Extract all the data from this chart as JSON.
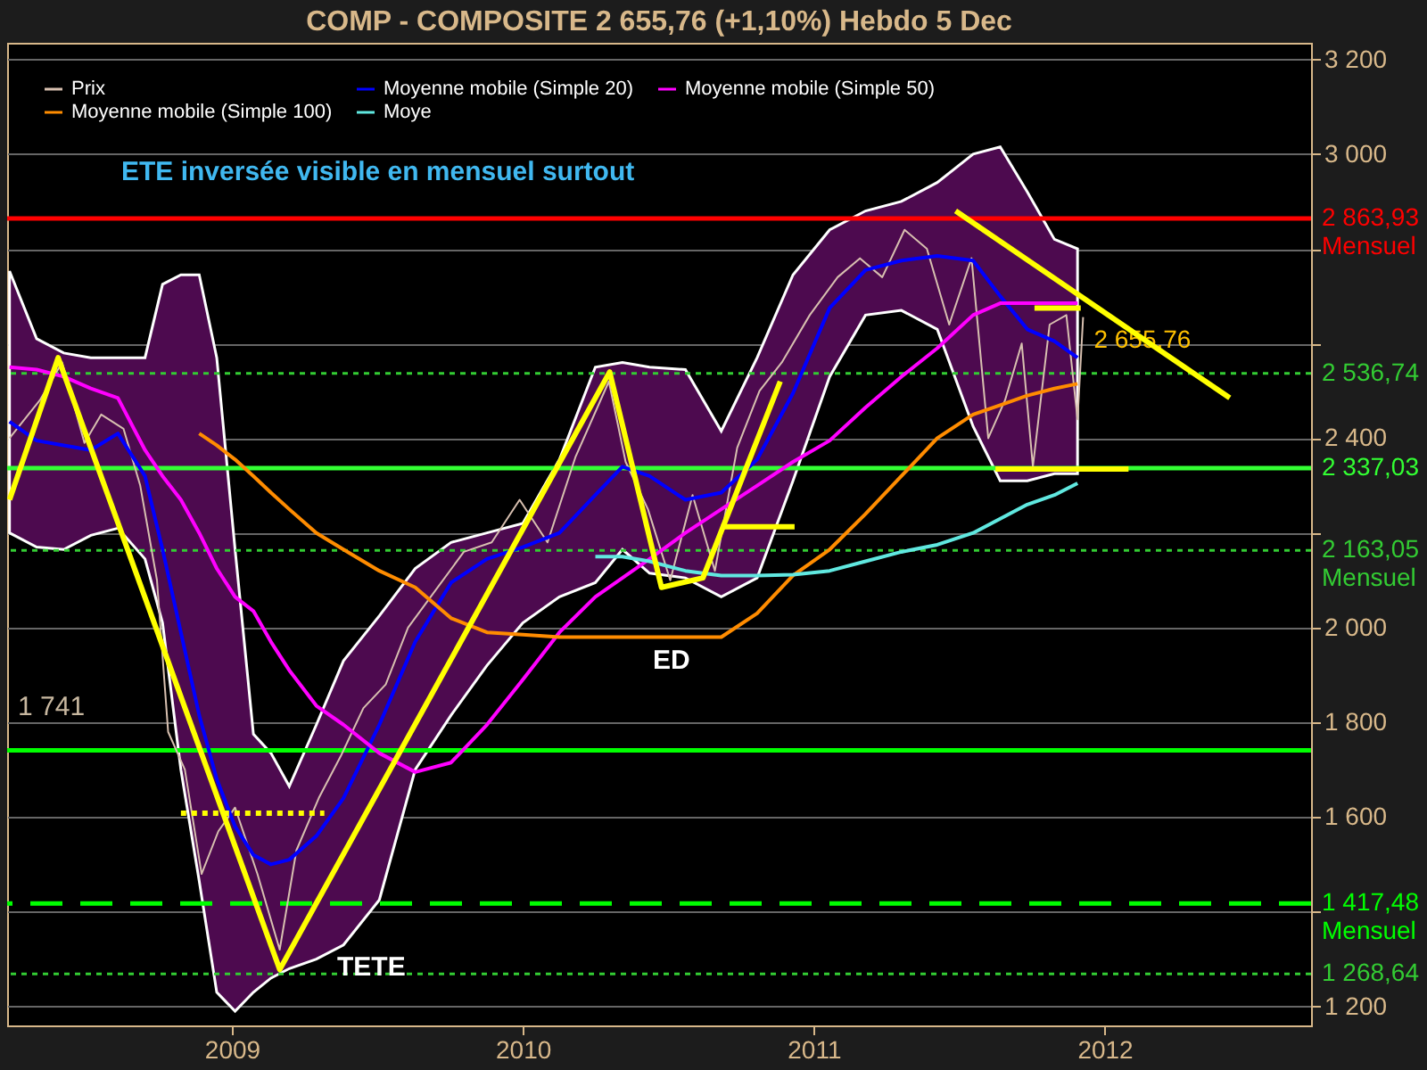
{
  "chart_data": {
    "type": "line",
    "title": "COMP - COMPOSITE    2 655,76 (+1,10%)    Hebdo  5 Dec",
    "xlim": [
      "2008-03-25",
      "2012-09-16"
    ],
    "xticks": [
      {
        "value": "2009-01-01",
        "label": "2009"
      },
      {
        "value": "2010-01-01",
        "label": "2010"
      },
      {
        "value": "2011-01-01",
        "label": "2011"
      },
      {
        "value": "2012-01-01",
        "label": "2012"
      }
    ],
    "ylim": [
      1160,
      3235
    ],
    "yticks": [
      {
        "value": 1200,
        "label": "1 200"
      },
      {
        "value": 1400,
        "label": null
      },
      {
        "value": 1600,
        "label": "1 600"
      },
      {
        "value": 1800,
        "label": "1 800"
      },
      {
        "value": 2000,
        "label": "2 000"
      },
      {
        "value": 2200,
        "label": null
      },
      {
        "value": 2400,
        "label": "2 400"
      },
      {
        "value": 2600,
        "label": null
      },
      {
        "value": 2800,
        "label": null
      },
      {
        "value": 3000,
        "label": "3 000"
      },
      {
        "value": 3200,
        "label": "3 200"
      }
    ],
    "grid": "y",
    "legend": "top left",
    "x": [
      "2008-03-28",
      "2008-05-01",
      "2008-06-04",
      "2008-07-08",
      "2008-08-11",
      "2008-09-14",
      "2008-10-06",
      "2008-10-29",
      "2008-11-21",
      "2008-12-13",
      "2009-01-05",
      "2009-01-28",
      "2009-02-19",
      "2009-03-14",
      "2009-04-17",
      "2009-05-21",
      "2009-07-05",
      "2009-08-19",
      "2009-10-03",
      "2009-11-17",
      "2010-01-01",
      "2010-02-16",
      "2010-04-02",
      "2010-05-06",
      "2010-06-09",
      "2010-07-24",
      "2010-09-07",
      "2010-10-22",
      "2010-12-06",
      "2011-01-21",
      "2011-03-07",
      "2011-04-21",
      "2011-06-05",
      "2011-07-20",
      "2011-08-23",
      "2011-09-26",
      "2011-10-30",
      "2011-11-28"
    ],
    "series": [
      {
        "name": "Prix",
        "color": "#d8c0b0",
        "x": [
          "2008-03-28",
          "2008-05-05",
          "2008-06-02",
          "2008-06-30",
          "2008-07-21",
          "2008-08-18",
          "2008-09-08",
          "2008-09-29",
          "2008-10-13",
          "2008-11-03",
          "2008-11-24",
          "2008-12-15",
          "2009-01-05",
          "2009-02-02",
          "2009-03-02",
          "2009-03-23",
          "2009-04-20",
          "2009-05-18",
          "2009-06-15",
          "2009-07-13",
          "2009-08-10",
          "2009-09-14",
          "2009-10-19",
          "2009-11-23",
          "2009-12-28",
          "2010-02-01",
          "2010-03-08",
          "2010-04-19",
          "2010-05-10",
          "2010-06-07",
          "2010-07-05",
          "2010-08-02",
          "2010-08-30",
          "2010-09-27",
          "2010-10-25",
          "2010-11-22",
          "2010-12-27",
          "2011-01-31",
          "2011-02-28",
          "2011-03-28",
          "2011-04-25",
          "2011-05-23",
          "2011-06-20",
          "2011-07-18",
          "2011-08-08",
          "2011-08-29",
          "2011-09-19",
          "2011-10-03",
          "2011-10-24",
          "2011-11-14",
          "2011-11-28",
          "2011-12-05"
        ],
        "values": [
          2400,
          2480,
          2560,
          2390,
          2450,
          2420,
          2300,
          2100,
          1780,
          1700,
          1480,
          1570,
          1620,
          1480,
          1320,
          1530,
          1640,
          1730,
          1830,
          1880,
          2000,
          2080,
          2160,
          2180,
          2270,
          2180,
          2360,
          2520,
          2350,
          2250,
          2100,
          2280,
          2120,
          2380,
          2500,
          2560,
          2660,
          2740,
          2780,
          2740,
          2840,
          2800,
          2640,
          2780,
          2400,
          2480,
          2600,
          2340,
          2640,
          2660,
          2440,
          2655.76
        ],
        "value_labels": [
          null,
          null,
          null,
          null,
          null,
          null,
          null,
          null,
          null,
          null,
          null,
          null,
          null,
          null,
          null,
          null,
          null,
          null,
          null,
          null,
          null,
          null,
          null,
          null,
          null,
          null,
          null,
          null,
          null,
          null,
          null,
          null,
          null,
          null,
          null,
          null,
          null,
          null,
          null,
          null,
          null,
          null,
          null,
          null,
          null,
          null,
          null,
          null,
          null,
          null,
          null,
          "2 655,76"
        ]
      },
      {
        "name": "Moyenne mobile (Simple 20)",
        "color": "#0000ff",
        "values": [
          2435,
          2395,
          2385,
          2375,
          2410,
          2320,
          2165,
          1990,
          1815,
          1680,
          1580,
          1520,
          1500,
          1510,
          1560,
          1640,
          1795,
          1970,
          2095,
          2145,
          2170,
          2200,
          2280,
          2340,
          2320,
          2270,
          2285,
          2355,
          2495,
          2675,
          2755,
          2775,
          2785,
          2775,
          2700,
          2630,
          2605,
          2570
        ],
        "lower": [
          2200,
          2170,
          2165,
          2195,
          2210,
          2145,
          2010,
          1700,
          1465,
          1230,
          1190,
          1230,
          1260,
          1280,
          1300,
          1330,
          1425,
          1700,
          1815,
          1920,
          2010,
          2065,
          2095,
          2165,
          2115,
          2105,
          2065,
          2105,
          2310,
          2530,
          2660,
          2670,
          2630,
          2425,
          2310,
          2310,
          2325,
          2325
        ],
        "upper": [
          2753,
          2610,
          2580,
          2570,
          2570,
          2570,
          2725,
          2745,
          2745,
          2570,
          2165,
          1775,
          1735,
          1665,
          1795,
          1930,
          2025,
          2125,
          2180,
          2200,
          2220,
          2355,
          2550,
          2560,
          2550,
          2545,
          2415,
          2570,
          2745,
          2840,
          2880,
          2900,
          2940,
          3000,
          3015,
          2920,
          2820,
          2800
        ]
      },
      {
        "name": "Moyenne mobile (Simple 50)",
        "color": "#ff00ff",
        "values": [
          2550,
          2545,
          2530,
          2505,
          2485,
          2375,
          2320,
          2270,
          2200,
          2125,
          2065,
          2035,
          1970,
          1910,
          1835,
          1795,
          1735,
          1695,
          1715,
          1795,
          1890,
          1990,
          2065,
          2105,
          2145,
          2200,
          2250,
          2300,
          2350,
          2395,
          2465,
          2530,
          2590,
          2660,
          2685,
          2685,
          2685,
          2685
        ]
      },
      {
        "name": "Moyenne mobile (Simple 100)",
        "color": "#ff8c00",
        "values": [
          null,
          null,
          null,
          null,
          null,
          null,
          null,
          null,
          2410,
          2385,
          2355,
          2320,
          2285,
          2250,
          2200,
          2165,
          2120,
          2085,
          2020,
          1990,
          1985,
          1980,
          1980,
          1980,
          1980,
          1980,
          1980,
          2030,
          2110,
          2165,
          2240,
          2320,
          2400,
          2450,
          2470,
          2490,
          2505,
          2515
        ]
      },
      {
        "name": "Moye",
        "color": "#60e8e0",
        "values": [
          null,
          null,
          null,
          null,
          null,
          null,
          null,
          null,
          null,
          null,
          null,
          null,
          null,
          null,
          null,
          null,
          null,
          null,
          null,
          null,
          null,
          null,
          2150,
          2150,
          2140,
          2120,
          2110,
          2110,
          2112,
          2120,
          2140,
          2160,
          2175,
          2200,
          2230,
          2260,
          2280,
          2305
        ]
      },
      {
        "color": "#ffff00",
        "x": [
          "2008-03-28",
          "2008-05-28",
          "2009-03-02",
          "2010-04-20",
          "2010-06-24",
          "2010-08-15",
          "2010-11-20"
        ],
        "values": [
          2270,
          2570,
          1278,
          2540,
          2085,
          2105,
          2520
        ]
      },
      {
        "color": "#ffff00",
        "x": [
          "2011-06-28",
          "2012-06-06"
        ],
        "values": [
          2880,
          2485
        ]
      },
      {
        "color": "#ffff00",
        "x": [
          "2010-09-07",
          "2010-12-08"
        ],
        "values": [
          2213,
          2213
        ]
      },
      {
        "color": "#ffff00",
        "x": [
          "2011-10-05",
          "2011-12-02"
        ],
        "values": [
          2675,
          2675
        ]
      },
      {
        "color": "#ffff00",
        "x": [
          "2011-08-17",
          "2012-01-31"
        ],
        "values": [
          2335,
          2335
        ]
      },
      {
        "color": "#ffff00",
        "x": [
          "2008-10-29",
          "2009-04-27"
        ],
        "values": [
          1608,
          1608
        ],
        "line_style": "dotted"
      }
    ],
    "ref_lines": [
      {
        "axis": "y",
        "value": 2863.93,
        "label": "2 863,93\nMensuel",
        "color": "#ff0000",
        "line_style": "solid"
      },
      {
        "axis": "y",
        "value": 2536.74,
        "label": "2 536,74",
        "color": "#33cc33",
        "line_style": "dotted"
      },
      {
        "axis": "y",
        "value": 2337.03,
        "label": "2 337,03",
        "color": "#33ff33",
        "line_style": "solid"
      },
      {
        "axis": "y",
        "value": 2163.05,
        "label": "2 163,05\nMensuel",
        "color": "#33cc33",
        "line_style": "dotted"
      },
      {
        "axis": "y",
        "value": 1741,
        "color": "#00ff00",
        "line_style": "solid"
      },
      {
        "axis": "y",
        "value": 1417.48,
        "label": "1 417,48\nMensuel",
        "color": "#00ff00",
        "line_style": "dashed"
      },
      {
        "axis": "y",
        "value": 1268.64,
        "label": "1 268,64",
        "color": "#33cc33",
        "line_style": "dotted"
      }
    ],
    "annotations": [
      "ETE inversée visible en mensuel surtout",
      "1 741",
      "ED",
      "TETE"
    ]
  }
}
